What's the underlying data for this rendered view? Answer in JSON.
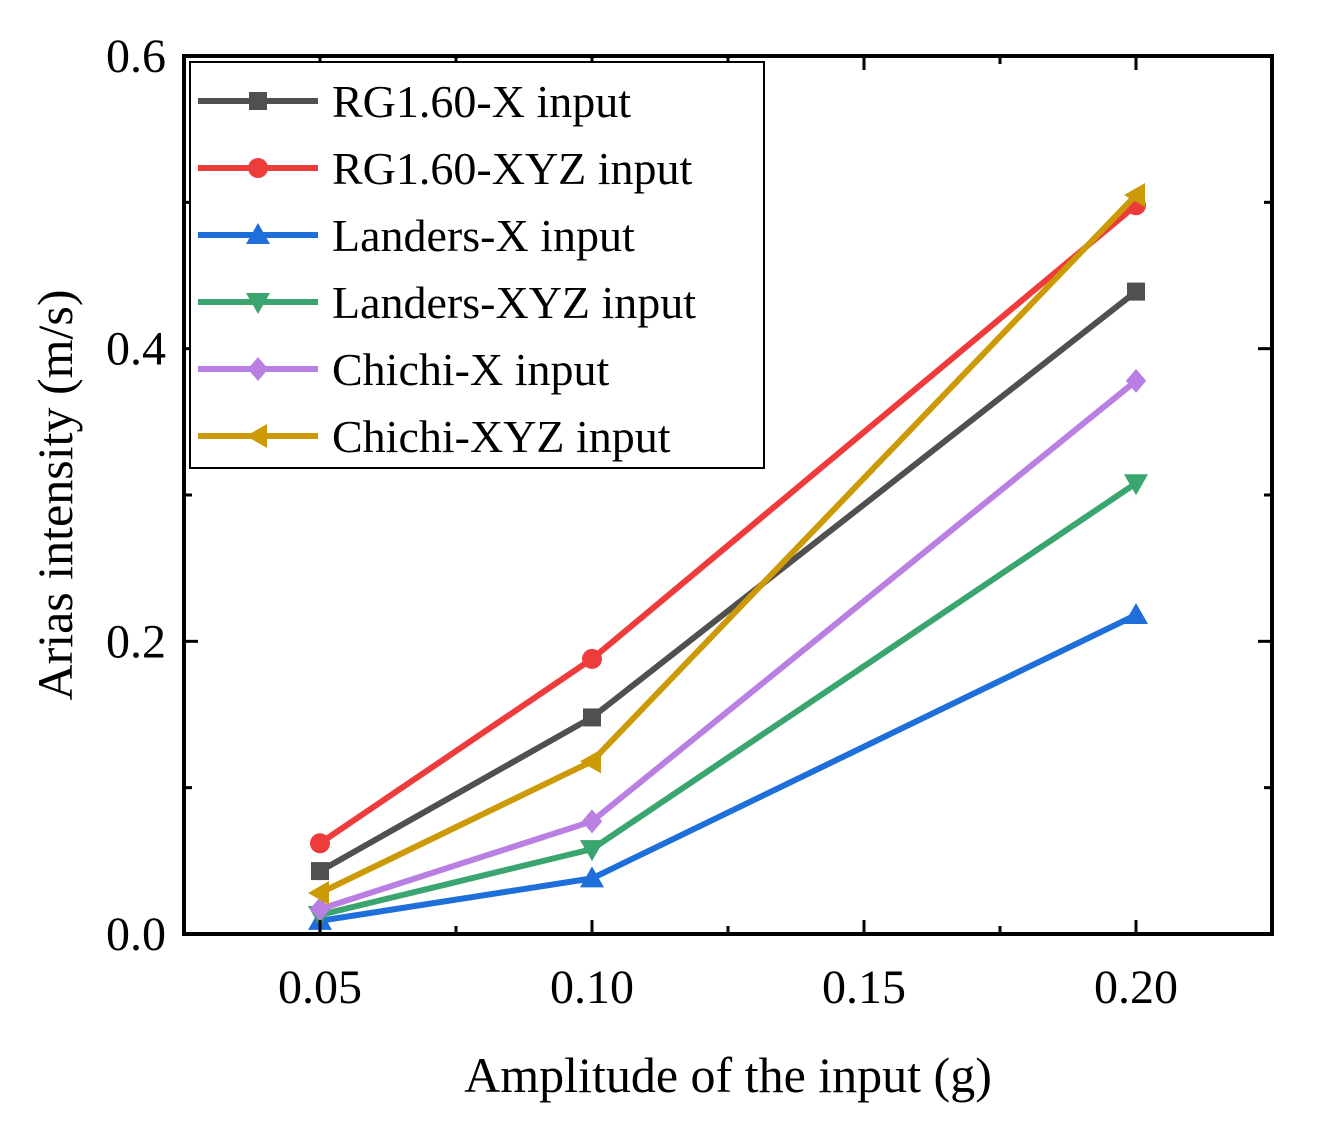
{
  "chart_data": {
    "type": "line",
    "title": "",
    "xlabel": "Amplitude of the input (g)",
    "ylabel": "Arias intensity (m/s)",
    "xlim": [
      0.025,
      0.225
    ],
    "ylim": [
      0.0,
      0.6
    ],
    "x_ticks": [
      {
        "value": 0.05,
        "label": "0.05"
      },
      {
        "value": 0.1,
        "label": "0.10"
      },
      {
        "value": 0.15,
        "label": "0.15"
      },
      {
        "value": 0.2,
        "label": "0.20"
      }
    ],
    "y_ticks": [
      {
        "value": 0.0,
        "label": "0.0"
      },
      {
        "value": 0.2,
        "label": "0.2"
      },
      {
        "value": 0.4,
        "label": "0.4"
      },
      {
        "value": 0.6,
        "label": "0.6"
      }
    ],
    "x_minor_ticks": [
      0.075,
      0.125,
      0.175
    ],
    "y_minor_ticks": [
      0.1,
      0.3,
      0.5
    ],
    "grid": false,
    "legend_position": "top-left",
    "x": [
      0.05,
      0.1,
      0.2
    ],
    "series": [
      {
        "name": "RG1.60-X input",
        "color": "#505050",
        "marker": "square",
        "values": [
          0.043,
          0.148,
          0.439
        ]
      },
      {
        "name": "RG1.60-XYZ input",
        "color": "#ee3b3b",
        "marker": "circle",
        "values": [
          0.062,
          0.188,
          0.498
        ]
      },
      {
        "name": "Landers-X input",
        "color": "#1e6fd9",
        "marker": "triangle-up",
        "values": [
          0.009,
          0.038,
          0.218
        ]
      },
      {
        "name": "Landers-XYZ input",
        "color": "#3aa56e",
        "marker": "triangle-down",
        "values": [
          0.013,
          0.058,
          0.308
        ]
      },
      {
        "name": "Chichi-X input",
        "color": "#b97fe3",
        "marker": "diamond",
        "values": [
          0.017,
          0.077,
          0.378
        ]
      },
      {
        "name": "Chichi-XYZ input",
        "color": "#cc9a06",
        "marker": "triangle-left",
        "values": [
          0.028,
          0.118,
          0.505
        ]
      }
    ]
  }
}
